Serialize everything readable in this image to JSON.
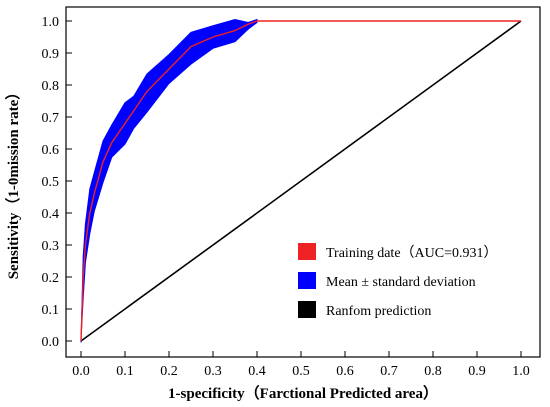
{
  "chart_data": {
    "type": "line",
    "title": "",
    "xlabel": "1-specificity（Farctional Predicted area）",
    "ylabel": "Sensitivity（1-0mission rate）",
    "xlim": [
      0.0,
      1.0
    ],
    "ylim": [
      0.0,
      1.0
    ],
    "xticks": [
      "0.0",
      "0.1",
      "0.2",
      "0.3",
      "0.4",
      "0.5",
      "0.6",
      "0.7",
      "0.8",
      "0.9",
      "1.0"
    ],
    "yticks": [
      "0.0",
      "0.1",
      "0.2",
      "0.3",
      "0.4",
      "0.5",
      "0.6",
      "0.7",
      "0.8",
      "0.9",
      "1.0"
    ],
    "grid": false,
    "legend_position": "bottom-right",
    "series": [
      {
        "name": "Training date（AUC=0.931）",
        "color": "#ee2222",
        "x": [
          0.0,
          0.005,
          0.01,
          0.02,
          0.03,
          0.05,
          0.07,
          0.1,
          0.12,
          0.15,
          0.2,
          0.25,
          0.3,
          0.35,
          0.38,
          0.4,
          1.0
        ],
        "y": [
          0.0,
          0.2,
          0.3,
          0.4,
          0.46,
          0.56,
          0.62,
          0.68,
          0.72,
          0.78,
          0.85,
          0.92,
          0.95,
          0.97,
          0.99,
          1.0,
          1.0
        ]
      },
      {
        "name": "Mean ± standard deviation",
        "color": "#0000ff",
        "x": [
          0.0,
          0.005,
          0.01,
          0.02,
          0.03,
          0.05,
          0.07,
          0.1,
          0.12,
          0.15,
          0.2,
          0.25,
          0.3,
          0.35,
          0.38,
          0.4
        ],
        "upper": [
          0.0,
          0.26,
          0.37,
          0.47,
          0.53,
          0.62,
          0.68,
          0.74,
          0.77,
          0.83,
          0.9,
          0.96,
          0.99,
          1.0,
          1.0,
          1.0
        ],
        "lower": [
          0.0,
          0.14,
          0.24,
          0.34,
          0.4,
          0.5,
          0.57,
          0.62,
          0.66,
          0.72,
          0.8,
          0.87,
          0.91,
          0.94,
          0.97,
          1.0
        ]
      },
      {
        "name": "Ranfom prediction",
        "color": "#000000",
        "x": [
          0.0,
          1.0
        ],
        "y": [
          0.0,
          1.0
        ]
      }
    ]
  }
}
